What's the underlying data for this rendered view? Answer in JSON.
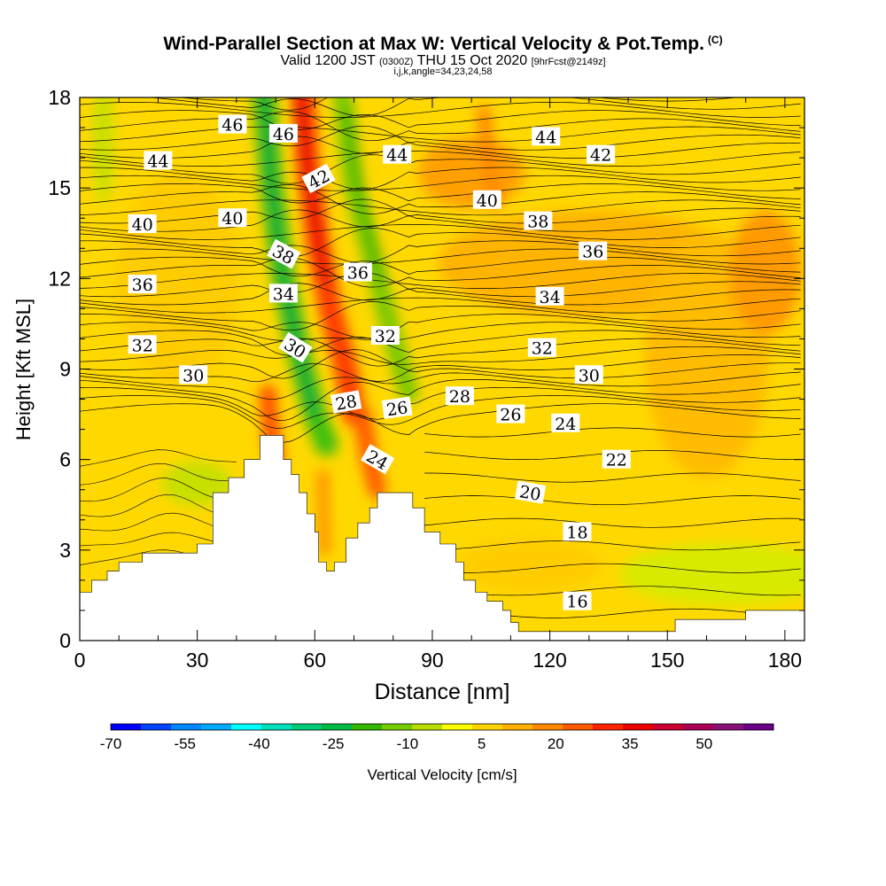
{
  "header": {
    "title": "Wind-Parallel Section at Max W: Vertical Velocity & Pot.Temp.",
    "title_tag": "(C)",
    "valid_prefix": "Valid 1200 JST",
    "valid_utc": "(0300Z)",
    "valid_date": "THU 15 Oct 2020",
    "forecast": "[9hrFcst@2149z]",
    "indices": "i,j,k,angle=34,23,24,58"
  },
  "chart_data": {
    "type": "heatmap",
    "xlabel": "Distance [nm]",
    "ylabel": "Height [Kft MSL]",
    "xlim": [
      0,
      185
    ],
    "ylim": [
      0,
      18
    ],
    "x_ticks": [
      0,
      30,
      60,
      90,
      120,
      150,
      180
    ],
    "y_ticks": [
      0,
      3,
      6,
      9,
      12,
      15,
      18
    ],
    "terrain_kft": [
      [
        0,
        1.6
      ],
      [
        3,
        1.6
      ],
      [
        3,
        2.0
      ],
      [
        7,
        2.0
      ],
      [
        7,
        2.3
      ],
      [
        10,
        2.3
      ],
      [
        10,
        2.6
      ],
      [
        16,
        2.6
      ],
      [
        16,
        2.9
      ],
      [
        30,
        2.9
      ],
      [
        30,
        3.2
      ],
      [
        34,
        3.2
      ],
      [
        34,
        4.9
      ],
      [
        38,
        4.9
      ],
      [
        38,
        5.4
      ],
      [
        42,
        5.4
      ],
      [
        42,
        6.0
      ],
      [
        46,
        6.0
      ],
      [
        46,
        6.8
      ],
      [
        52,
        6.8
      ],
      [
        52,
        6.0
      ],
      [
        54,
        6.0
      ],
      [
        54,
        5.5
      ],
      [
        56,
        5.5
      ],
      [
        56,
        4.9
      ],
      [
        58,
        4.9
      ],
      [
        58,
        4.2
      ],
      [
        60,
        4.2
      ],
      [
        60,
        3.6
      ],
      [
        61,
        3.6
      ],
      [
        61,
        2.6
      ],
      [
        63,
        2.6
      ],
      [
        63,
        2.3
      ],
      [
        65,
        2.3
      ],
      [
        65,
        2.6
      ],
      [
        68,
        2.6
      ],
      [
        68,
        3.4
      ],
      [
        71,
        3.4
      ],
      [
        71,
        3.9
      ],
      [
        74,
        3.9
      ],
      [
        74,
        4.4
      ],
      [
        76,
        4.4
      ],
      [
        76,
        4.9
      ],
      [
        85,
        4.9
      ],
      [
        85,
        4.4
      ],
      [
        88,
        4.4
      ],
      [
        88,
        3.6
      ],
      [
        92,
        3.6
      ],
      [
        92,
        3.2
      ],
      [
        96,
        3.2
      ],
      [
        96,
        2.6
      ],
      [
        98,
        2.6
      ],
      [
        98,
        2.0
      ],
      [
        101,
        2.0
      ],
      [
        101,
        1.6
      ],
      [
        104,
        1.6
      ],
      [
        104,
        1.3
      ],
      [
        108,
        1.3
      ],
      [
        108,
        1.0
      ],
      [
        110,
        1.0
      ],
      [
        110,
        0.6
      ],
      [
        112,
        0.6
      ],
      [
        112,
        0.3
      ],
      [
        130,
        0.3
      ],
      [
        130,
        0.3
      ],
      [
        152,
        0.3
      ],
      [
        152,
        0.7
      ],
      [
        170,
        0.7
      ],
      [
        170,
        1.0
      ],
      [
        176,
        1.0
      ],
      [
        176,
        1.0
      ],
      [
        185,
        1.0
      ]
    ],
    "theta_contour_labels": [
      {
        "label": "46",
        "x": 39,
        "y": 17.1,
        "angle": 0
      },
      {
        "label": "46",
        "x": 52,
        "y": 16.8,
        "angle": 0
      },
      {
        "label": "42",
        "x": 61,
        "y": 15.3,
        "angle": -28
      },
      {
        "label": "44",
        "x": 81,
        "y": 16.1,
        "angle": 0
      },
      {
        "label": "44",
        "x": 119,
        "y": 16.7,
        "angle": 0
      },
      {
        "label": "42",
        "x": 133,
        "y": 16.1,
        "angle": 0
      },
      {
        "label": "44",
        "x": 20,
        "y": 15.9,
        "angle": 0
      },
      {
        "label": "40",
        "x": 104,
        "y": 14.6,
        "angle": 0
      },
      {
        "label": "38",
        "x": 117,
        "y": 13.9,
        "angle": 0
      },
      {
        "label": "40",
        "x": 16,
        "y": 13.8,
        "angle": 0
      },
      {
        "label": "40",
        "x": 39,
        "y": 14.0,
        "angle": 0
      },
      {
        "label": "36",
        "x": 131,
        "y": 12.9,
        "angle": 0
      },
      {
        "label": "38",
        "x": 52,
        "y": 12.8,
        "angle": 28
      },
      {
        "label": "36",
        "x": 71,
        "y": 12.2,
        "angle": 0
      },
      {
        "label": "36",
        "x": 16,
        "y": 11.8,
        "angle": 0
      },
      {
        "label": "34",
        "x": 52,
        "y": 11.5,
        "angle": 0
      },
      {
        "label": "34",
        "x": 120,
        "y": 11.4,
        "angle": 0
      },
      {
        "label": "32",
        "x": 78,
        "y": 10.1,
        "angle": 0
      },
      {
        "label": "30",
        "x": 55,
        "y": 9.7,
        "angle": 32
      },
      {
        "label": "32",
        "x": 16,
        "y": 9.8,
        "angle": 0
      },
      {
        "label": "32",
        "x": 118,
        "y": 9.7,
        "angle": 0
      },
      {
        "label": "30",
        "x": 29,
        "y": 8.8,
        "angle": 0
      },
      {
        "label": "30",
        "x": 130,
        "y": 8.8,
        "angle": 0
      },
      {
        "label": "28",
        "x": 68,
        "y": 7.9,
        "angle": -10
      },
      {
        "label": "26",
        "x": 81,
        "y": 7.7,
        "angle": -8
      },
      {
        "label": "28",
        "x": 97,
        "y": 8.1,
        "angle": 0
      },
      {
        "label": "26",
        "x": 110,
        "y": 7.5,
        "angle": 0
      },
      {
        "label": "24",
        "x": 124,
        "y": 7.2,
        "angle": 0
      },
      {
        "label": "24",
        "x": 76,
        "y": 6.0,
        "angle": 30
      },
      {
        "label": "22",
        "x": 137,
        "y": 6.0,
        "angle": 0
      },
      {
        "label": "20",
        "x": 115,
        "y": 4.9,
        "angle": 10
      },
      {
        "label": "18",
        "x": 127,
        "y": 3.6,
        "angle": 0
      },
      {
        "label": "16",
        "x": 127,
        "y": 1.3,
        "angle": 0
      }
    ],
    "colorbar": {
      "label": "Vertical Velocity [cm/s]",
      "tick_labels": [
        "-70",
        "-55",
        "-40",
        "-25",
        "-10",
        "5",
        "20",
        "35",
        "50"
      ],
      "colors": [
        "#0000ff",
        "#0044ff",
        "#0088ff",
        "#00aaff",
        "#00ffff",
        "#00e0bb",
        "#00cc77",
        "#00bb44",
        "#33b800",
        "#77cc00",
        "#bbdd00",
        "#ffff00",
        "#ffd400",
        "#ffb000",
        "#ff8800",
        "#ff5a00",
        "#ff2200",
        "#ee0000",
        "#cc0033",
        "#aa0055",
        "#8a1177",
        "#6a0088"
      ]
    }
  }
}
